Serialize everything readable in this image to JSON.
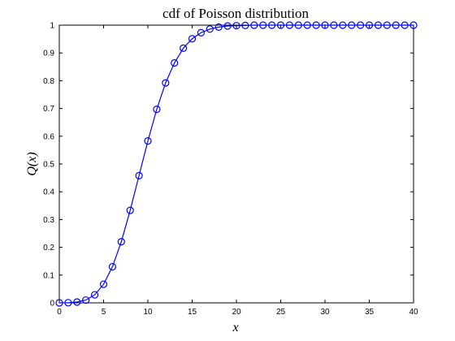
{
  "chart_data": {
    "type": "line",
    "title": "cdf of Poisson distribution",
    "xlabel": "x",
    "ylabel": "Q(x)",
    "xlim": [
      0,
      40
    ],
    "ylim": [
      0,
      1
    ],
    "xticks": [
      0,
      5,
      10,
      15,
      20,
      25,
      30,
      35,
      40
    ],
    "yticks": [
      0,
      0.1,
      0.2,
      0.3,
      0.4,
      0.5,
      0.6,
      0.7,
      0.8,
      0.9,
      1
    ],
    "xtick_labels": [
      "0",
      "5",
      "10",
      "15",
      "20",
      "25",
      "30",
      "35",
      "40"
    ],
    "ytick_labels": [
      "0",
      "0.1",
      "0.2",
      "0.3",
      "0.4",
      "0.5",
      "0.6",
      "0.7",
      "0.8",
      "0.9",
      "1"
    ],
    "grid": false,
    "legend": "none",
    "series": [
      {
        "color": "#0000ff",
        "marker": "circle",
        "x": [
          0,
          1,
          2,
          3,
          4,
          5,
          6,
          7,
          8,
          9,
          10,
          11,
          12,
          13,
          14,
          15,
          16,
          17,
          18,
          19,
          20,
          21,
          22,
          23,
          24,
          25,
          26,
          27,
          28,
          29,
          30,
          31,
          32,
          33,
          34,
          35,
          36,
          37,
          38,
          39,
          40
        ],
        "y": [
          0.0,
          0.0005,
          0.003,
          0.01,
          0.029,
          0.067,
          0.13,
          0.22,
          0.333,
          0.458,
          0.583,
          0.697,
          0.792,
          0.864,
          0.917,
          0.951,
          0.973,
          0.986,
          0.993,
          0.997,
          0.998,
          0.999,
          1,
          1,
          1,
          1,
          1,
          1,
          1,
          1,
          1,
          1,
          1,
          1,
          1,
          1,
          1,
          1,
          1,
          1,
          1
        ]
      }
    ]
  }
}
